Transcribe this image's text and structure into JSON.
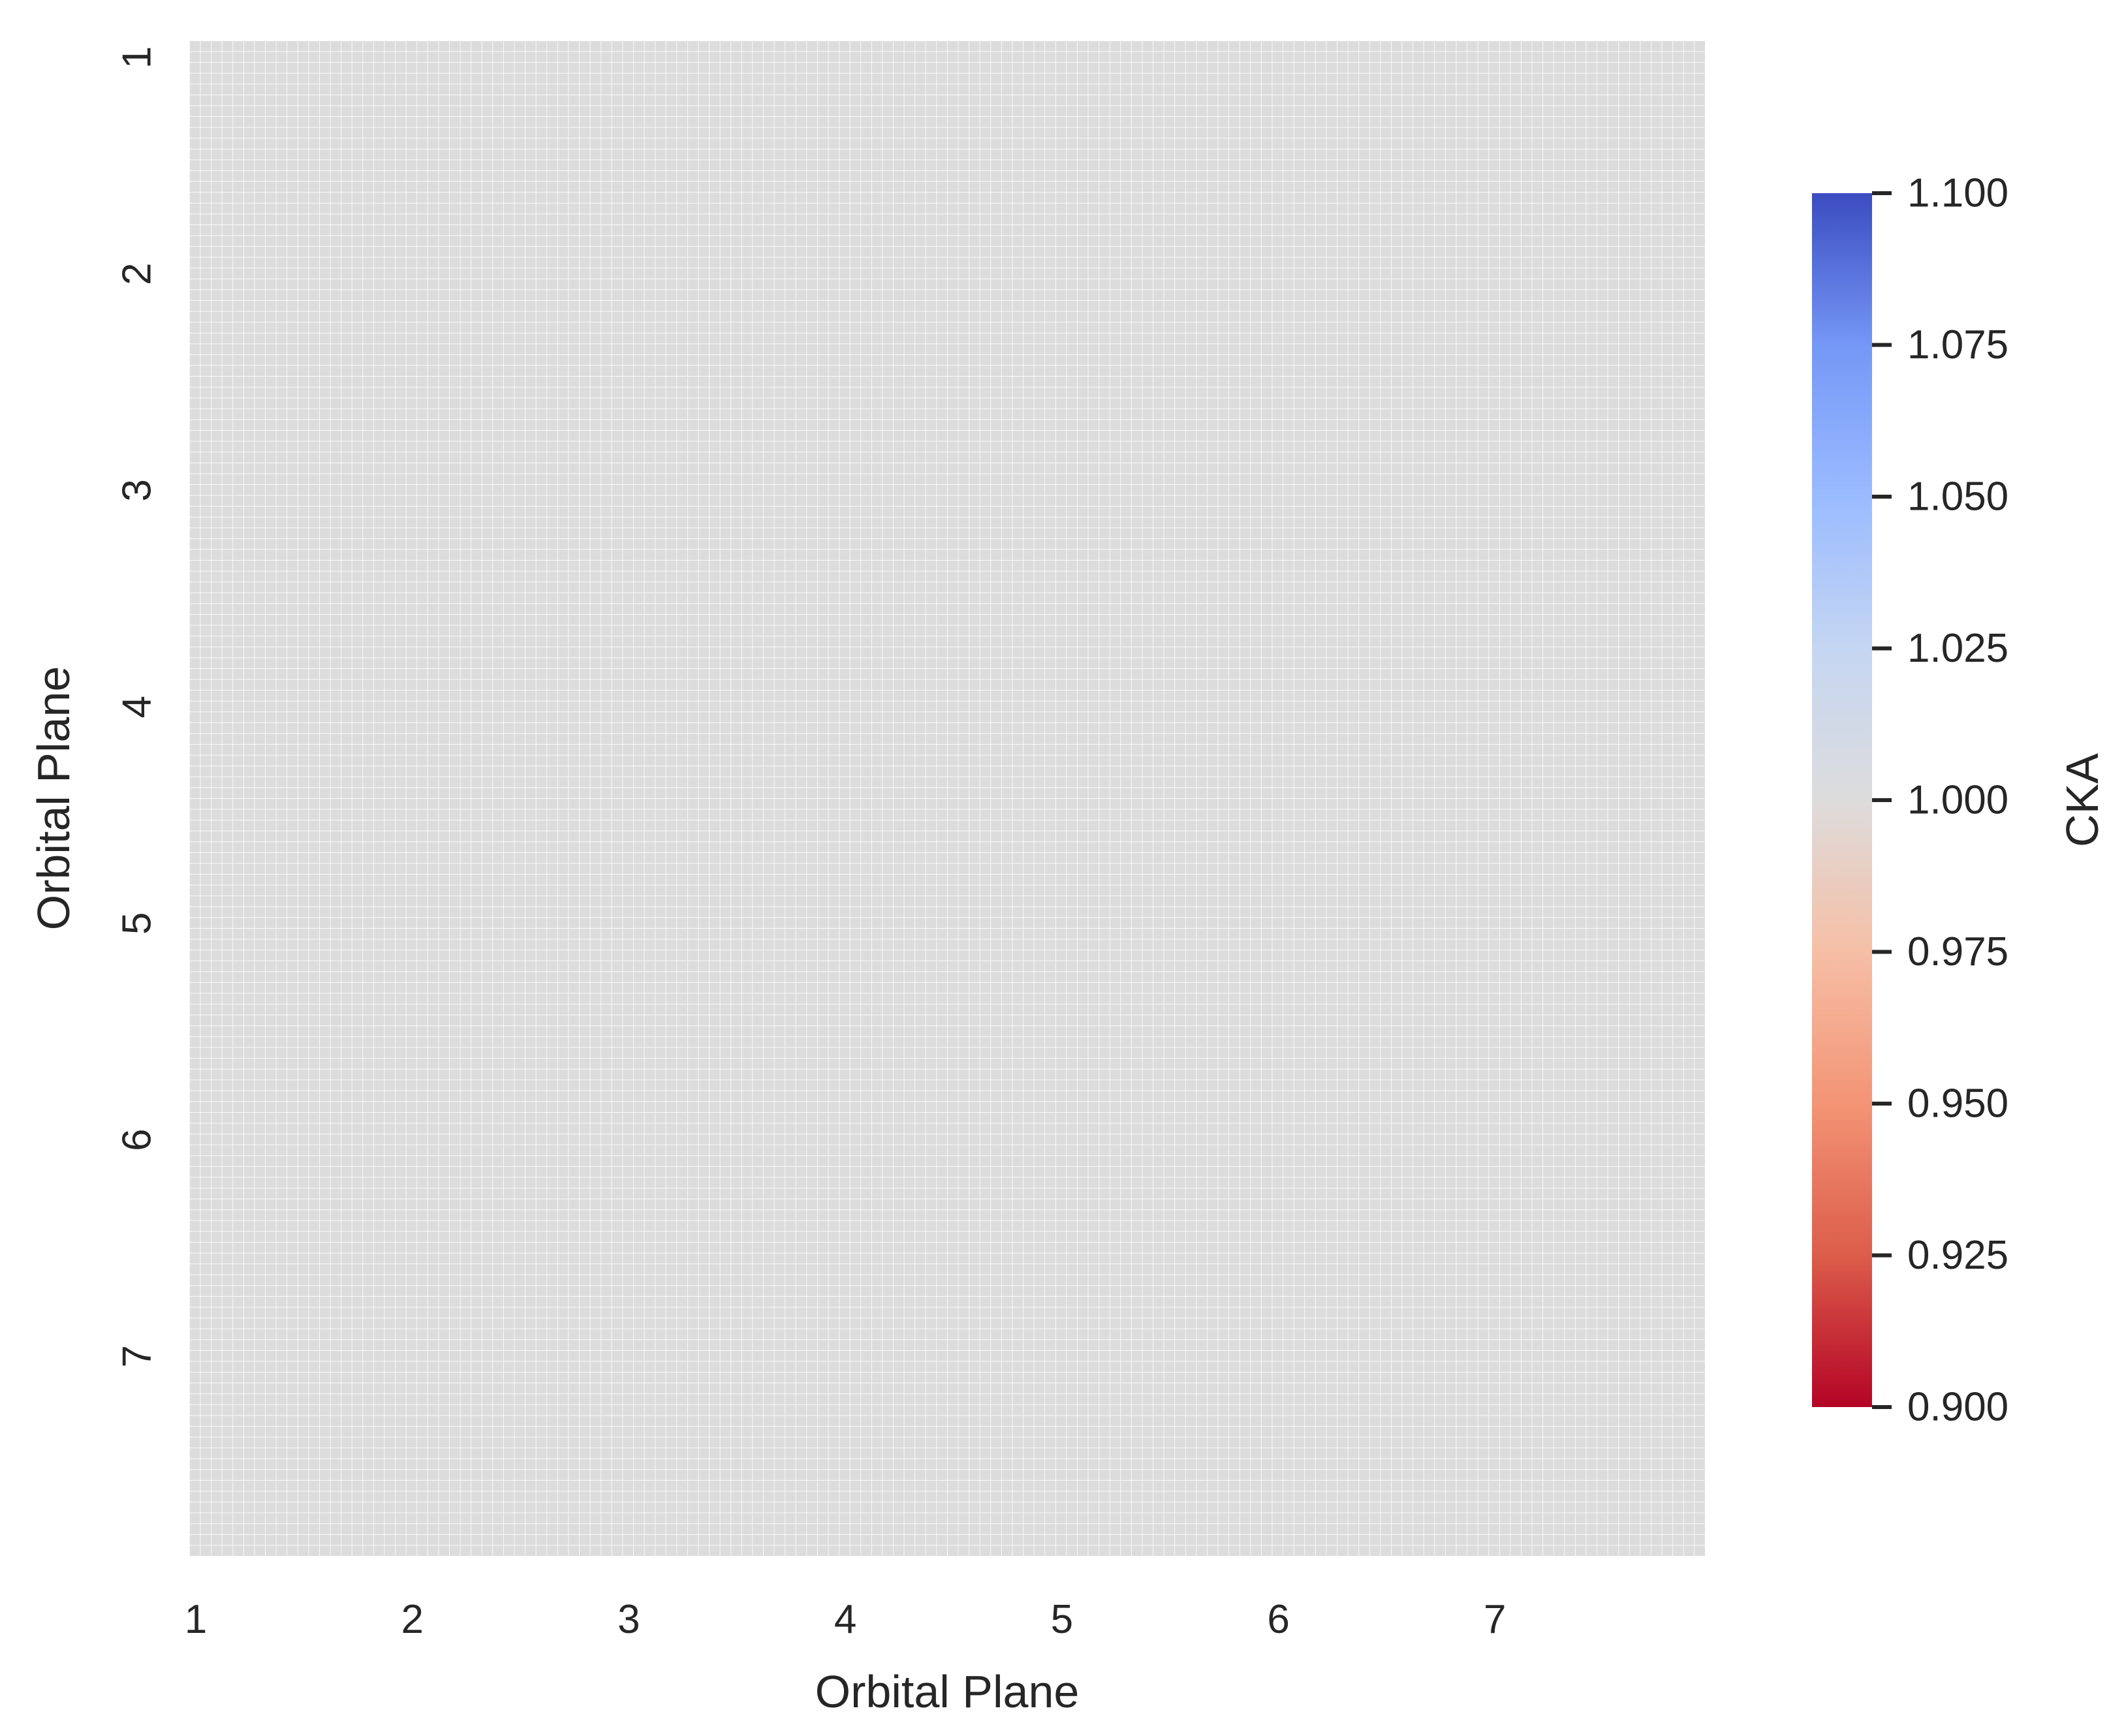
{
  "chart_data": {
    "type": "heatmap",
    "title": "",
    "xlabel": "Orbital Plane",
    "ylabel": "Orbital Plane",
    "x_tick_labels": [
      "1",
      "2",
      "3",
      "4",
      "5",
      "6",
      "7"
    ],
    "y_tick_labels": [
      "1",
      "2",
      "3",
      "4",
      "5",
      "6",
      "7"
    ],
    "matrix_size": 140,
    "cells_per_tick": 20,
    "cell_value": 1.0,
    "cell_color": "#dcdcdc",
    "grid_line_color": "#ffffff",
    "colorbar": {
      "label": "CKA",
      "colormap": "coolwarm",
      "vmin": 0.9,
      "vmax": 1.1,
      "ticks": [
        "0.900",
        "0.925",
        "0.950",
        "0.975",
        "1.000",
        "1.025",
        "1.050",
        "1.075",
        "1.100"
      ],
      "stops": [
        "#b40426",
        "#dc5d4a",
        "#f39475",
        "#f6bfa6",
        "#dddcdc",
        "#c5d6f2",
        "#9abbff",
        "#7597f6",
        "#3b4cc0"
      ]
    }
  }
}
